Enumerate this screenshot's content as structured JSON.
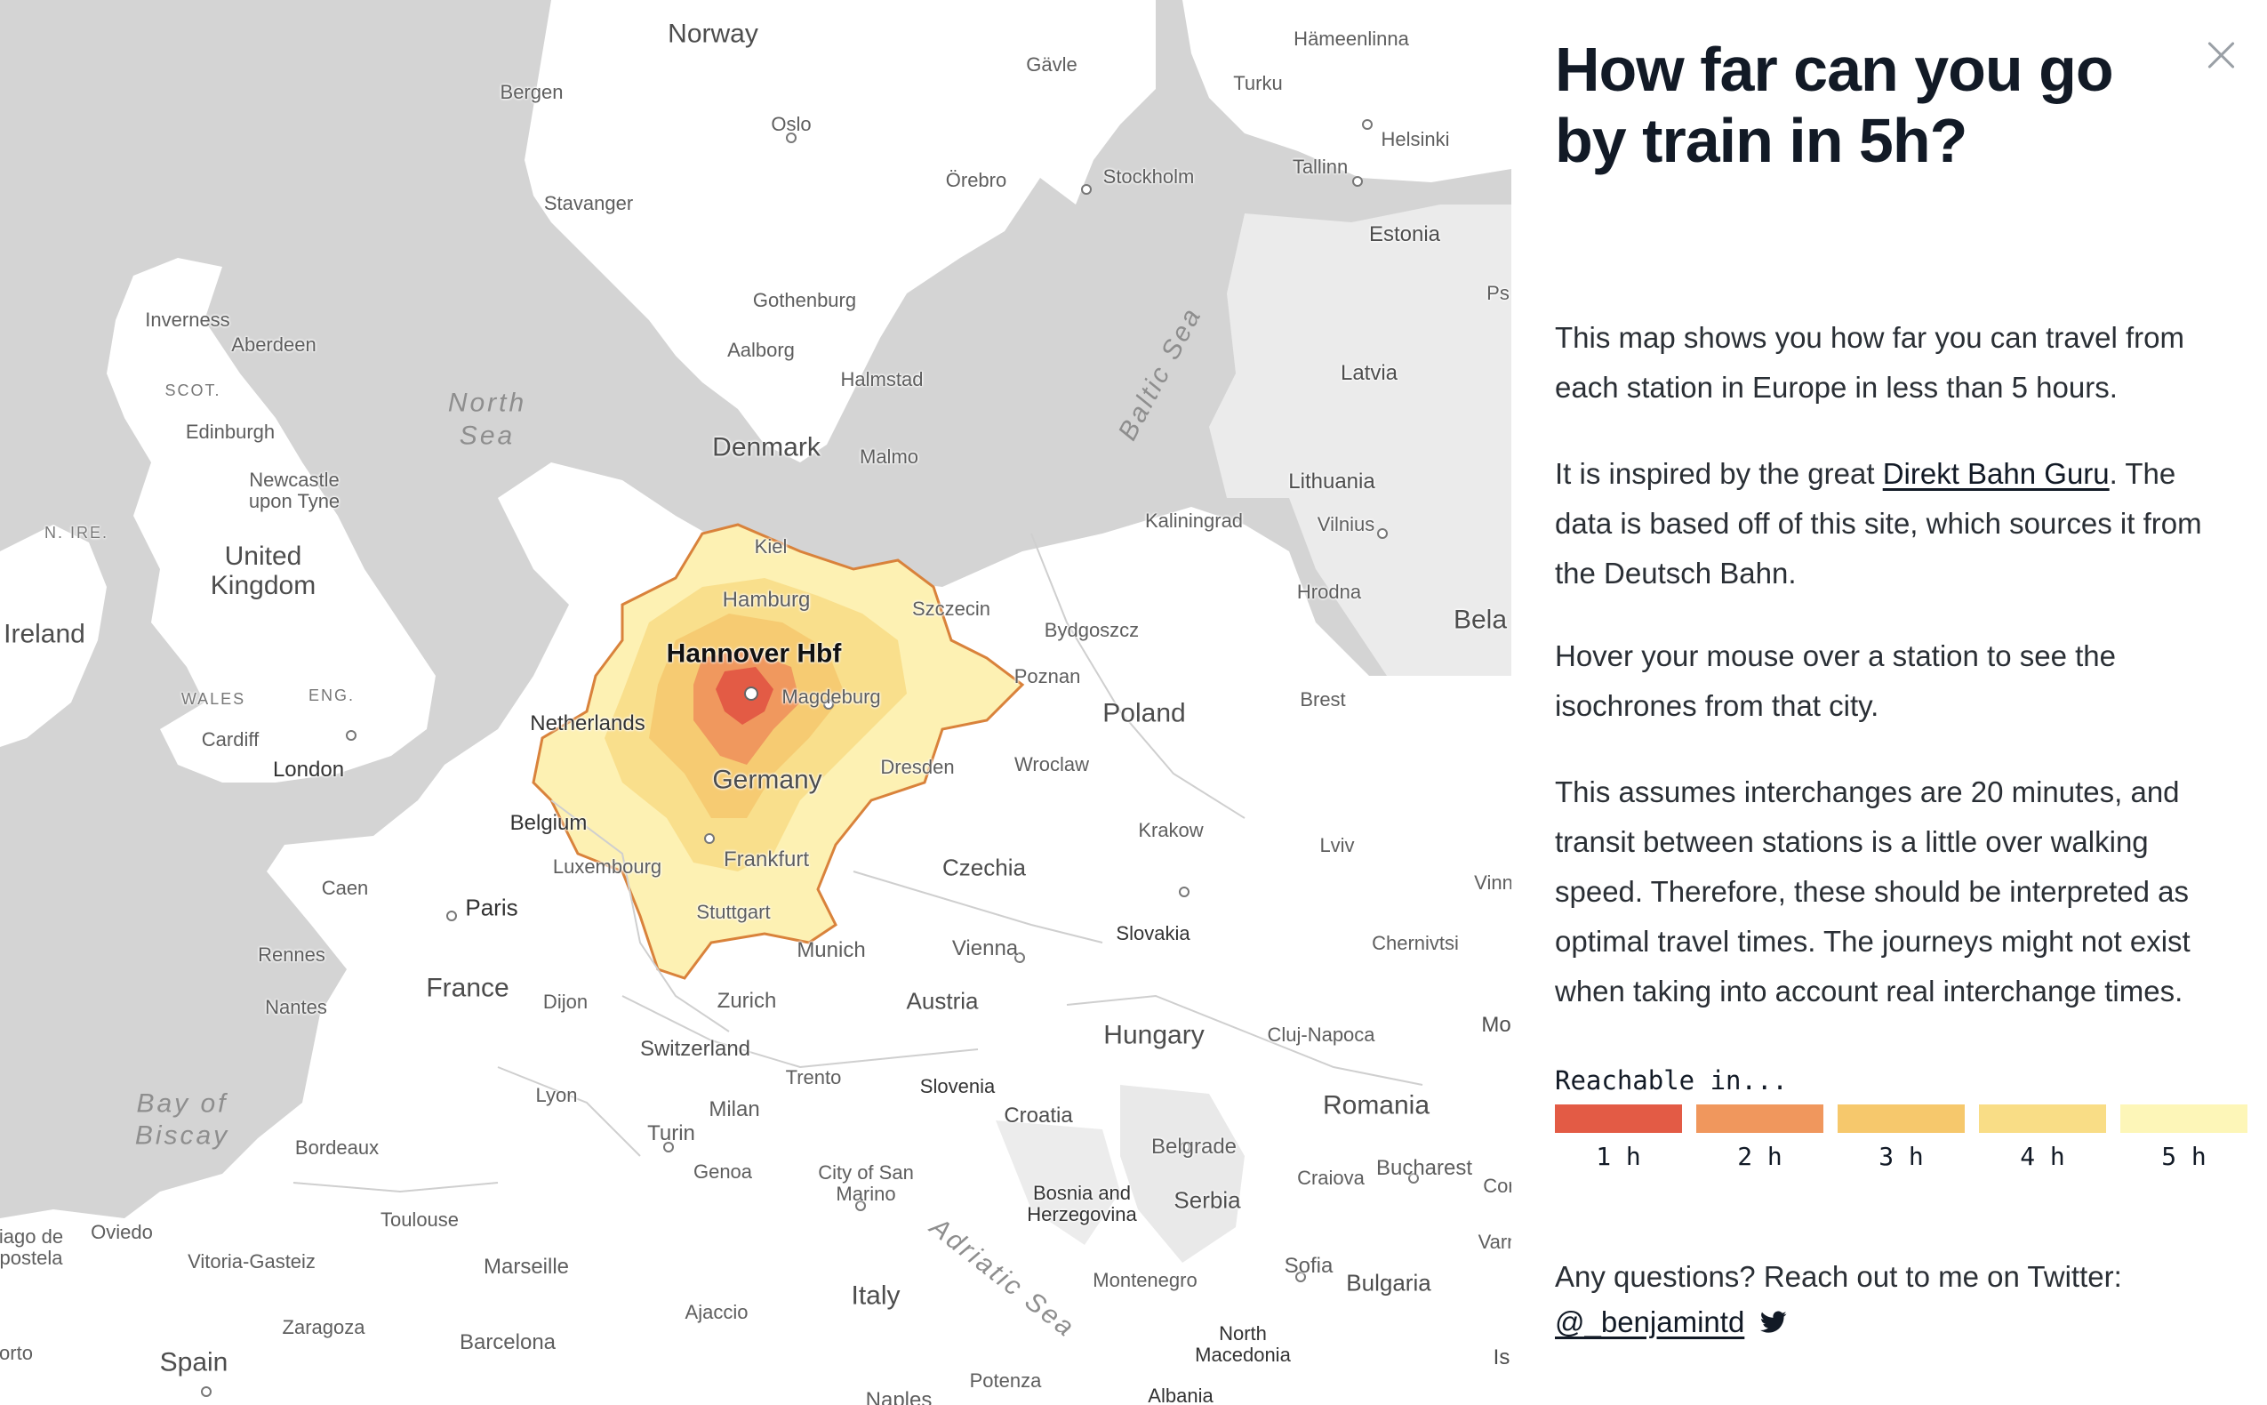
{
  "panel": {
    "title": "How far can you go by train in 5h?",
    "intro": "This map shows you how far you can travel from each station in Europe in less than 5 hours.",
    "inspired_prefix": "It is inspired by the great ",
    "inspired_link": "Direkt Bahn Guru",
    "inspired_suffix": ". The data is based off of this site, which sources it from the Deutsch Bahn.",
    "hover_text": "Hover your mouse over a station to see the isochrones from that city.",
    "assumptions": "This assumes interchanges are 20 minutes, and transit between stations is a little over walking speed. Therefore, these should be interpreted as optimal travel times. The journeys might not exist when taking into account real interchange times.",
    "legend_title": "Reachable in...",
    "legend": [
      {
        "label": "1 h",
        "color": "#e35b45"
      },
      {
        "label": "2 h",
        "color": "#f0975d"
      },
      {
        "label": "3 h",
        "color": "#f6c86c"
      },
      {
        "label": "4 h",
        "color": "#f9dd86"
      },
      {
        "label": "5 h",
        "color": "#fdf6b8"
      }
    ],
    "questions": "Any questions? Reach out to me on Twitter:",
    "twitter_handle": "@_benjamintd",
    "close_icon": "close-icon",
    "twitter_icon": "twitter-bird-icon"
  },
  "map": {
    "selected_station": "Hannover Hbf",
    "labels": {
      "norway": "Norway",
      "bergen": "Bergen",
      "oslo": "Oslo",
      "stavanger": "Stavanger",
      "gavle": "Gävle",
      "orebro": "Örebro",
      "stockholm": "Stockholm",
      "turku": "Turku",
      "hameenlinna": "Hämeenlinna",
      "helsinki": "Helsinki",
      "tallinn": "Tallinn",
      "estonia": "Estonia",
      "gothenburg": "Gothenburg",
      "aalborg": "Aalborg",
      "halmstad": "Halmstad",
      "denmark": "Denmark",
      "malmo": "Malmo",
      "latvia": "Latvia",
      "lithuania": "Lithuania",
      "vilnius": "Vilnius",
      "kaliningrad": "Kaliningrad",
      "hrodna": "Hrodna",
      "bela": "Bela",
      "baltic_sea": "Baltic Sea",
      "north_sea_1": "North",
      "north_sea_2": "Sea",
      "inverness": "Inverness",
      "aberdeen": "Aberdeen",
      "scot": "SCOT.",
      "edinburgh": "Edinburgh",
      "newcastle": "Newcastle\nupon Tyne",
      "n_ire": "N. IRE.",
      "united_kingdom": "United\nKingdom",
      "ireland": "Ireland",
      "wales": "WALES",
      "eng": "ENG.",
      "cardiff": "Cardiff",
      "london": "London",
      "kiel": "Kiel",
      "hamburg": "Hamburg",
      "szczecin": "Szczecin",
      "bydgoszcz": "Bydgoszcz",
      "poznan": "Poznan",
      "poland": "Poland",
      "brest": "Brest",
      "netherlands": "Netherlands",
      "magdeburg": "Magdeburg",
      "germany": "Germany",
      "dresden": "Dresden",
      "wroclaw": "Wroclaw",
      "belgium": "Belgium",
      "luxembourg": "Luxembourg",
      "frankfurt": "Frankfurt",
      "czechia": "Czechia",
      "krakow": "Krakow",
      "lviv": "Lviv",
      "vinn": "Vinn",
      "caen": "Caen",
      "paris": "Paris",
      "stuttgart": "Stuttgart",
      "munich": "Munich",
      "vienna": "Vienna",
      "slovakia": "Slovakia",
      "chernivtsi": "Chernivtsi",
      "rennes": "Rennes",
      "nantes": "Nantes",
      "france": "France",
      "dijon": "Dijon",
      "zurich": "Zurich",
      "austria": "Austria",
      "switzerland": "Switzerland",
      "hungary": "Hungary",
      "cluj": "Cluj-Napoca",
      "mo": "Mo",
      "bay_of": "Bay of",
      "biscay": "Biscay",
      "lyon": "Lyon",
      "trento": "Trento",
      "slovenia": "Slovenia",
      "milan": "Milan",
      "turin": "Turin",
      "croatia": "Croatia",
      "romania": "Romania",
      "bordeaux": "Bordeaux",
      "genoa": "Genoa",
      "san_marino": "City of San\nMarino",
      "belgrade": "Belgrade",
      "bosnia": "Bosnia and\nHerzegovina",
      "serbia": "Serbia",
      "craiova": "Craiova",
      "bucharest": "Bucharest",
      "cor": "Cor",
      "toulouse": "Toulouse",
      "santiago": "iago de\npostela",
      "oviedo": "Oviedo",
      "vitoria": "Vitoria-Gasteiz",
      "marseille": "Marseille",
      "adriatic": "Adriatic Sea",
      "italy": "Italy",
      "montenegro": "Montenegro",
      "sofia": "Sofia",
      "bulgaria": "Bulgaria",
      "varn": "Varn",
      "ajaccio": "Ajaccio",
      "zaragoza": "Zaragoza",
      "barcelona": "Barcelona",
      "spain": "Spain",
      "orto": "orto",
      "north_macedonia": "North\nMacedonia",
      "potenza": "Potenza",
      "naples": "Naples",
      "albania": "Albania",
      "is": "Is",
      "ps": "Ps"
    }
  }
}
